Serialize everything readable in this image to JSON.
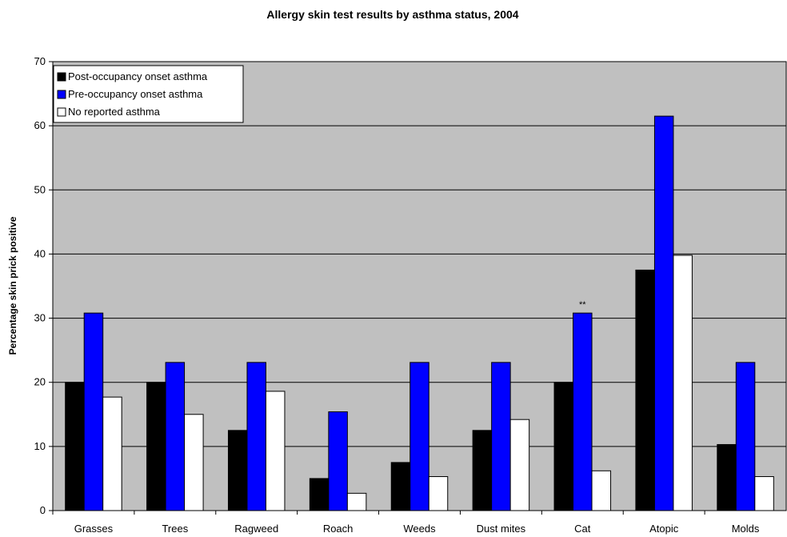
{
  "chart_data": {
    "type": "bar",
    "title": "Allergy skin test results by asthma status, 2004",
    "xlabel": "",
    "ylabel": "Percentage skin prick positive",
    "ylim": [
      0,
      70
    ],
    "yticks": [
      0,
      10,
      20,
      30,
      40,
      50,
      60,
      70
    ],
    "grid": true,
    "legend_position": "top-left",
    "plot_background": "#c0c0c0",
    "categories": [
      "Grasses",
      "Trees",
      "Ragweed",
      "Roach",
      "Weeds",
      "Dust mites",
      "Cat",
      "Atopic",
      "Molds"
    ],
    "series": [
      {
        "name": "Post-occupancy onset asthma",
        "color": "#000000",
        "values": [
          20.0,
          20.0,
          12.5,
          5.0,
          7.5,
          12.5,
          20.0,
          37.5,
          10.3
        ]
      },
      {
        "name": "Pre-occupancy onset asthma",
        "color": "#0000ff",
        "values": [
          30.8,
          23.1,
          23.1,
          15.4,
          23.1,
          23.1,
          30.8,
          61.5,
          23.1
        ]
      },
      {
        "name": "No reported asthma",
        "color": "#ffffff",
        "values": [
          17.7,
          15.0,
          18.6,
          2.7,
          5.3,
          14.2,
          6.2,
          39.8,
          5.3
        ]
      }
    ],
    "annotations": [
      {
        "text": "**",
        "category": "Cat",
        "series": "Pre-occupancy onset asthma"
      }
    ]
  }
}
